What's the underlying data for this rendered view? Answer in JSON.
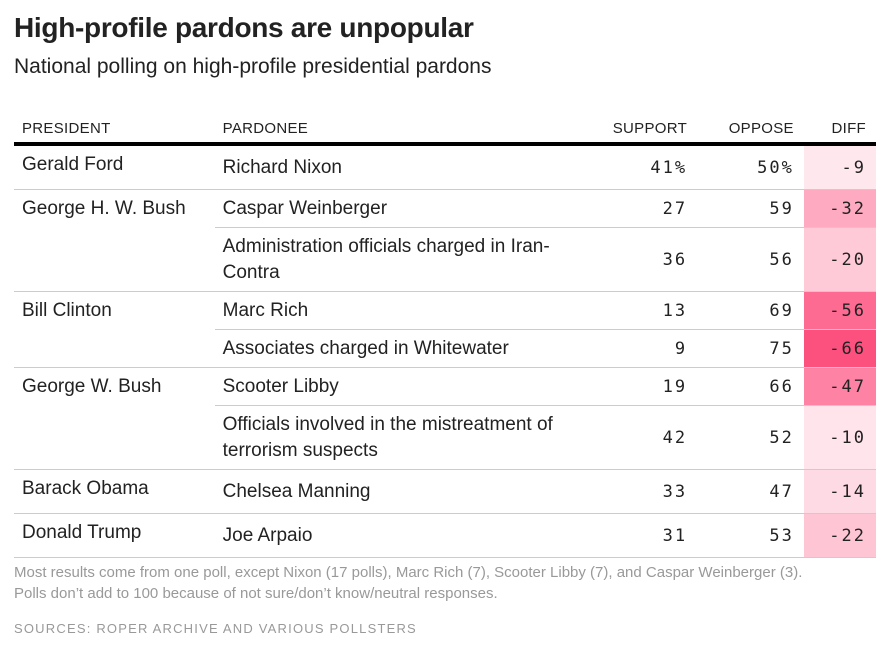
{
  "title": "High-profile pardons are unpopular",
  "subtitle": "National polling on high-profile presidential pardons",
  "note": "Most results come from one poll, except Nixon (17 polls), Marc Rich (7), Scooter Libby (7), and Caspar Weinberger (3). Polls don’t add to 100 because of not sure/don’t know/neutral responses.",
  "sources": "SOURCES: ROPER ARCHIVE AND VARIOUS POLLSTERS",
  "colors": {
    "diff_max": "#fc4577",
    "base": "#ffffff"
  },
  "chart_data": {
    "type": "table",
    "columns": [
      "PRESIDENT",
      "PARDONEE",
      "SUPPORT",
      "OPPOSE",
      "DIFF"
    ],
    "groups": [
      {
        "president": "Gerald Ford",
        "rows": [
          {
            "pardonee": "Richard Nixon",
            "support": "41%",
            "oppose": "50%",
            "diff": "-9"
          }
        ]
      },
      {
        "president": "George H. W. Bush",
        "rows": [
          {
            "pardonee": "Caspar Weinberger",
            "support": "27",
            "oppose": "59",
            "diff": "-32"
          },
          {
            "pardonee": "Administration officials charged in Iran-Contra",
            "support": "36",
            "oppose": "56",
            "diff": "-20"
          }
        ]
      },
      {
        "president": "Bill Clinton",
        "rows": [
          {
            "pardonee": "Marc Rich",
            "support": "13",
            "oppose": "69",
            "diff": "-56"
          },
          {
            "pardonee": "Associates charged in Whitewater",
            "support": "9",
            "oppose": "75",
            "diff": "-66"
          }
        ]
      },
      {
        "president": "George W. Bush",
        "rows": [
          {
            "pardonee": "Scooter Libby",
            "support": "19",
            "oppose": "66",
            "diff": "-47"
          },
          {
            "pardonee": "Officials involved in the mistreatment of terrorism suspects",
            "support": "42",
            "oppose": "52",
            "diff": "-10"
          }
        ]
      },
      {
        "president": "Barack Obama",
        "rows": [
          {
            "pardonee": "Chelsea Manning",
            "support": "33",
            "oppose": "47",
            "diff": "-14"
          }
        ]
      },
      {
        "president": "Donald Trump",
        "rows": [
          {
            "pardonee": "Joe Arpaio",
            "support": "31",
            "oppose": "53",
            "diff": "-22"
          }
        ]
      }
    ]
  }
}
